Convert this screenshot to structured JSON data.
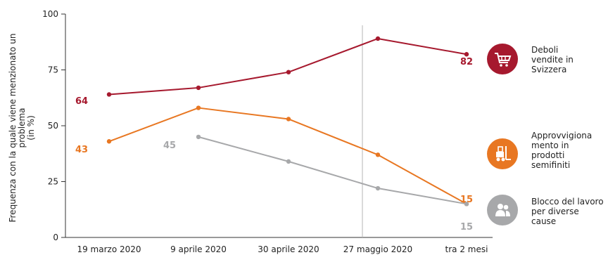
{
  "chart_data": {
    "type": "line",
    "ylabel_lines": [
      "Frequenza con la quale viene menzionato un",
      "problema",
      "(in %)"
    ],
    "xlabel": "",
    "ylim": [
      0,
      100
    ],
    "yticks": [
      0,
      25,
      50,
      75,
      100
    ],
    "categories": [
      "19 marzo 2020",
      "9 aprile 2020",
      "30  aprile 2020",
      "27 maggio 2020",
      "tra 2 mesi"
    ],
    "reference_line_category": "27 maggio 2020",
    "grid": false,
    "series": [
      {
        "name_lines": [
          "Deboli",
          "vendite in",
          "Svizzera"
        ],
        "color": "#a6192e",
        "icon": "shopping-cart-icon",
        "values": [
          64,
          67,
          74,
          89,
          82
        ],
        "labels": [
          {
            "index": 0,
            "text": "64"
          },
          {
            "index": 4,
            "text": "82"
          }
        ]
      },
      {
        "name_lines": [
          "Approvvigiona",
          "mento in",
          "prodotti",
          "semifiniti"
        ],
        "color": "#e87722",
        "icon": "forklift-icon",
        "values": [
          43,
          58,
          53,
          37,
          15
        ],
        "labels": [
          {
            "index": 0,
            "text": "43"
          },
          {
            "index": 4,
            "text": "15"
          }
        ]
      },
      {
        "name_lines": [
          "Blocco del lavoro",
          "per diverse",
          "cause"
        ],
        "color": "#a7a8aa",
        "icon": "people-icon",
        "values": [
          null,
          45,
          34,
          22,
          15
        ],
        "labels": [
          {
            "index": 1,
            "text": "45"
          },
          {
            "index": 4,
            "text": "15"
          }
        ]
      }
    ]
  }
}
